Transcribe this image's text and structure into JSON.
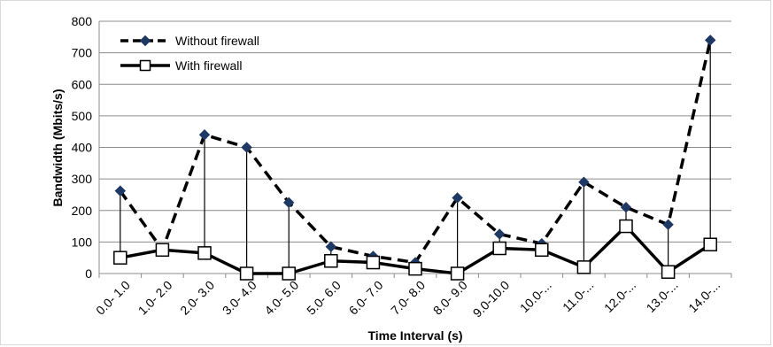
{
  "chart_data": {
    "type": "line",
    "categories": [
      "0.0- 1.0",
      "1.0- 2.0",
      "2.0- 3.0",
      "3.0- 4.0",
      "4.0- 5.0",
      "5.0- 6.0",
      "6.0- 7.0",
      "7.0- 8.0",
      "8.0- 9.0",
      "9.0-10.0",
      "10.0-...",
      "11.0-...",
      "12.0-...",
      "13.0-...",
      "14.0-..."
    ],
    "series": [
      {
        "name": "Without firewall",
        "values": [
          262,
          75,
          440,
          400,
          225,
          85,
          55,
          35,
          240,
          125,
          95,
          290,
          210,
          155,
          740
        ],
        "color": "#000000",
        "style": "dashed",
        "marker": "diamond"
      },
      {
        "name": "With firewall",
        "values": [
          50,
          75,
          65,
          0,
          0,
          40,
          35,
          15,
          0,
          80,
          75,
          20,
          150,
          5,
          92
        ],
        "color": "#000000",
        "style": "solid",
        "marker": "square"
      }
    ],
    "title": "",
    "xlabel": "Time  Interval (s)",
    "ylabel": "Bandwidth (Mbits/s)",
    "ylim": [
      0,
      800
    ],
    "yticks": [
      0,
      100,
      200,
      300,
      400,
      500,
      600,
      700,
      800
    ],
    "grid": true,
    "drop_lines": true,
    "legend_position": "top-left"
  }
}
